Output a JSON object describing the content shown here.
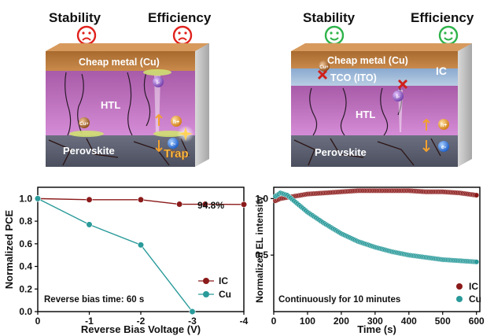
{
  "left_panel": {
    "stability_label": "Stability",
    "efficiency_label": "Efficiency",
    "stability_face": "sad",
    "efficiency_face": "sad",
    "face_color": "#e0211c",
    "layers": {
      "top_metal": "Cheap metal (Cu)",
      "htl": "HTL",
      "perovskite": "Perovskite"
    },
    "markers": {
      "copper_ion": "Cu+",
      "iodide_ion": "I-",
      "hole": "h+",
      "electron": "e-",
      "trap": "Trap"
    }
  },
  "right_panel": {
    "stability_label": "Stability",
    "efficiency_label": "Efficiency",
    "stability_face": "happy",
    "efficiency_face": "happy",
    "face_color": "#2eb34a",
    "layers": {
      "top_metal": "Cheap metal (Cu)",
      "tco": "TCO (ITO)",
      "ic": "IC",
      "htl": "HTL",
      "perovskite": "Perovskite"
    },
    "markers": {
      "copper_ion": "Cu+",
      "iodide_ion": "I-",
      "hole": "h+",
      "electron": "e-"
    }
  },
  "chart_data": [
    {
      "type": "line",
      "xlabel": "Reverse Bias Voltage (V)",
      "ylabel": "Normalized PCE",
      "x_ticks": [
        "0",
        "-1",
        "-2",
        "-3",
        "-4"
      ],
      "y_ticks": [
        "0.0",
        "0.2",
        "0.4",
        "0.6",
        "0.8",
        "1.0"
      ],
      "xlim": [
        0,
        -4
      ],
      "ylim": [
        0,
        1.1
      ],
      "series": [
        {
          "name": "IC",
          "color": "#8b1a1a",
          "x": [
            0,
            -1,
            -2,
            -2.75,
            -3.25,
            -4
          ],
          "values": [
            1.0,
            0.99,
            0.99,
            0.95,
            0.95,
            0.948
          ]
        },
        {
          "name": "Cu",
          "color": "#2a9a9a",
          "x": [
            0,
            -1,
            -2,
            -3
          ],
          "values": [
            1.0,
            0.77,
            0.59,
            0.0
          ]
        }
      ],
      "annotations": [
        "94.8%",
        "Reverse bias time: 60 s"
      ],
      "legend": "bottom-right"
    },
    {
      "type": "scatter",
      "xlabel": "Time (s)",
      "ylabel": "Normalized EL intensity",
      "x_ticks": [
        "0",
        "100",
        "200",
        "300",
        "400",
        "500",
        "600"
      ],
      "y_ticks": [
        "0.5",
        "1.0"
      ],
      "xlim": [
        0,
        610
      ],
      "ylim": [
        0,
        1.1
      ],
      "series": [
        {
          "name": "IC",
          "color": "#8b1a1a",
          "x": [
            5,
            20,
            40,
            60,
            80,
            100,
            150,
            200,
            250,
            300,
            350,
            400,
            450,
            500,
            550,
            600
          ],
          "values": [
            0.98,
            1.0,
            1.01,
            1.02,
            1.03,
            1.04,
            1.05,
            1.06,
            1.07,
            1.07,
            1.07,
            1.07,
            1.06,
            1.06,
            1.05,
            1.03
          ]
        },
        {
          "name": "Cu",
          "color": "#2a9a9a",
          "x": [
            5,
            20,
            40,
            60,
            80,
            100,
            150,
            200,
            250,
            300,
            350,
            400,
            450,
            500,
            550,
            600
          ],
          "values": [
            1.02,
            1.05,
            1.03,
            0.98,
            0.93,
            0.88,
            0.78,
            0.69,
            0.62,
            0.57,
            0.53,
            0.5,
            0.48,
            0.46,
            0.45,
            0.44
          ]
        }
      ],
      "annotations": [
        "Continuously for 10 minutes"
      ],
      "legend": "bottom-right"
    }
  ]
}
